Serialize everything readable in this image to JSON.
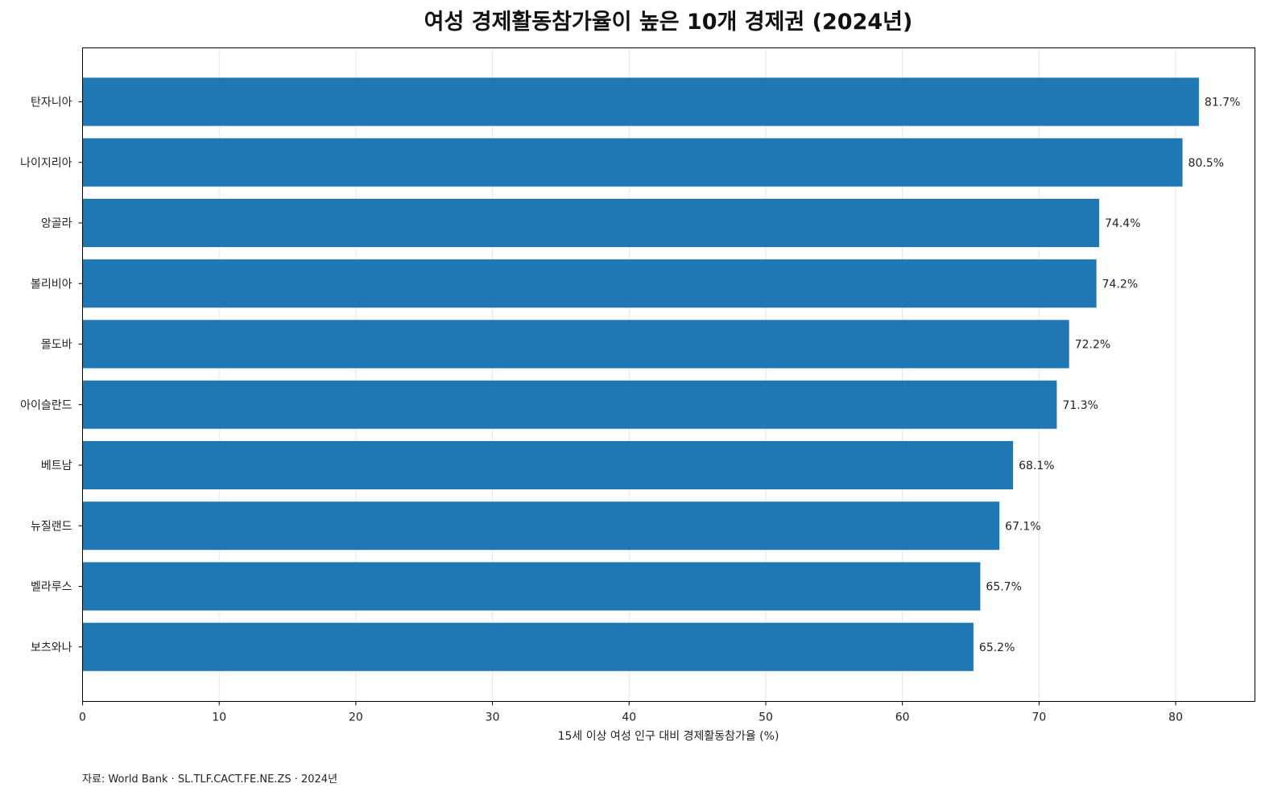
{
  "chart_data": {
    "type": "bar",
    "orientation": "horizontal",
    "title": "여성 경제활동참가율이 높은 10개 경제권 (2024년)",
    "xlabel": "15세 이상 여성 인구 대비 경제활동참가율 (%)",
    "ylabel": "",
    "categories": [
      "탄자니아",
      "나이지리아",
      "앙골라",
      "볼리비아",
      "몰도바",
      "아이슬란드",
      "베트남",
      "뉴질랜드",
      "벨라루스",
      "보츠와나"
    ],
    "values": [
      81.7,
      80.5,
      74.4,
      74.2,
      72.2,
      71.3,
      68.1,
      67.1,
      65.7,
      65.2
    ],
    "value_labels": [
      "81.7%",
      "80.5%",
      "74.4%",
      "74.2%",
      "72.2%",
      "71.3%",
      "68.1%",
      "67.1%",
      "65.7%",
      "65.2%"
    ],
    "xlim": [
      0,
      85.8
    ],
    "xticks": [
      0,
      10,
      20,
      30,
      40,
      50,
      60,
      70,
      80
    ],
    "grid": "x-axis vertical lines",
    "legend": "none",
    "bar_color": "#1f77b4",
    "source": "자료: World Bank · SL.TLF.CACT.FE.NE.ZS · 2024년"
  }
}
